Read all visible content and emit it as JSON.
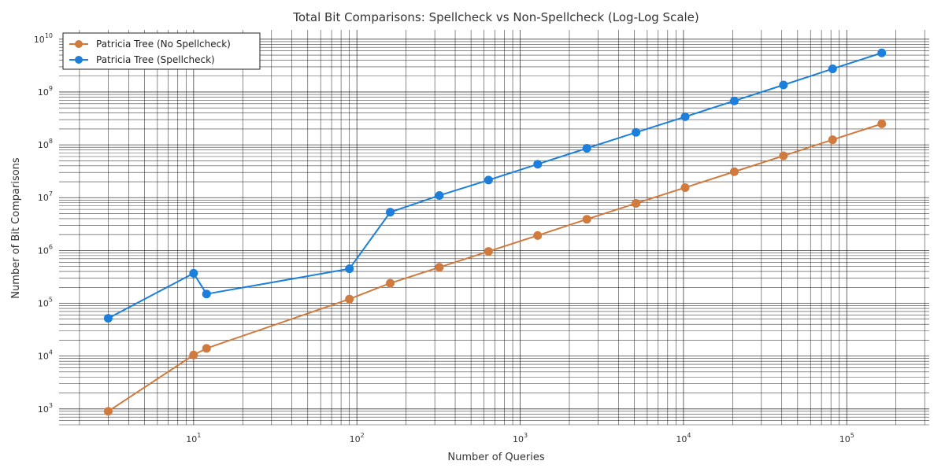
{
  "chart_data": {
    "type": "line",
    "title": "Total Bit Comparisons: Spellcheck vs Non-Spellcheck (Log-Log Scale)",
    "xlabel": "Number of Queries",
    "ylabel": "Number of Bit Comparisons",
    "xscale": "log",
    "yscale": "log",
    "xlim": [
      1.5,
      320000
    ],
    "ylim": [
      500,
      15000000000
    ],
    "grid": true,
    "legend_position": "top-left",
    "x_tick_labels": [
      "10^1",
      "10^2",
      "10^3",
      "10^4",
      "10^5"
    ],
    "y_tick_labels": [
      "10^3",
      "10^4",
      "10^5",
      "10^6",
      "10^7",
      "10^8",
      "10^9",
      "10^10"
    ],
    "series": [
      {
        "name": "Patricia Tree (No Spellcheck)",
        "color": "#d07a3e",
        "x": [
          3,
          10,
          12,
          90,
          160,
          320,
          640,
          1280,
          2560,
          5120,
          10240,
          20480,
          40960,
          81920,
          163840
        ],
        "y": [
          900,
          10500,
          14000,
          120000,
          240000,
          480000,
          960000,
          1920000,
          3900000,
          7800000,
          15500000,
          31000000,
          62000000,
          125000000,
          250000000
        ]
      },
      {
        "name": "Patricia Tree (Spellcheck)",
        "color": "#1b7fdb",
        "x": [
          3,
          10,
          12,
          90,
          160,
          320,
          640,
          1280,
          2560,
          5120,
          10240,
          20480,
          40960,
          81920,
          163840
        ],
        "y": [
          52000,
          370000,
          150000,
          450000,
          5300000,
          11000000,
          21500000,
          43000000,
          86000000,
          172000000,
          340000000,
          680000000,
          1360000000,
          2750000000,
          5500000000
        ]
      }
    ]
  }
}
